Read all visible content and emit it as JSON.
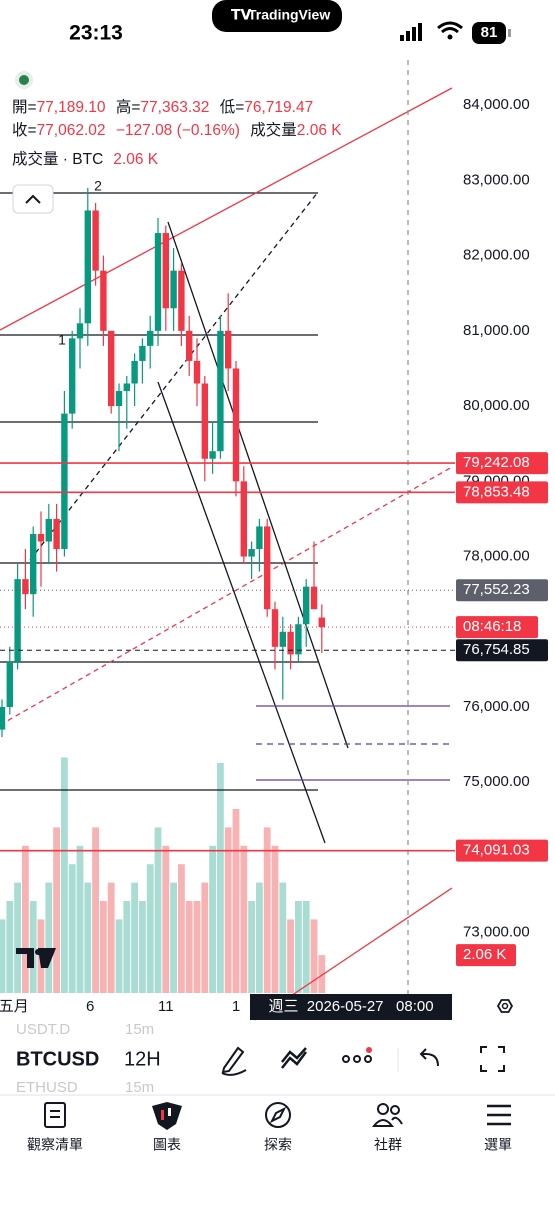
{
  "status_bar": {
    "time": "23:13",
    "app": "TradingView",
    "battery": "81"
  },
  "legend": {
    "open": {
      "label": "開=",
      "value": "77,189.10"
    },
    "high": {
      "label": "高=",
      "value": "77,363.32"
    },
    "low": {
      "label": "低=",
      "value": "76,719.47"
    },
    "close": {
      "label": "收=",
      "value": "77,062.02"
    },
    "change": "−127.08 (−0.16%)",
    "volume": {
      "label": "成交量",
      "value": "2.06 K"
    }
  },
  "volume_legend": {
    "label": "成交量 · BTC",
    "value": "2.06 K"
  },
  "wave_labels": [
    "2",
    "1"
  ],
  "ylim": [
    71840,
    84600
  ],
  "yticks": [
    {
      "value": 84000,
      "label": "84,000.00"
    },
    {
      "value": 83000,
      "label": "83,000.00"
    },
    {
      "value": 82000,
      "label": "82,000.00"
    },
    {
      "value": 81000,
      "label": "81,000.00"
    },
    {
      "value": 80000,
      "label": "80,000.00"
    },
    {
      "value": 79000,
      "label": "79,000.00"
    },
    {
      "value": 78000,
      "label": "78,000.00"
    },
    {
      "value": 76000,
      "label": "76,000.00"
    },
    {
      "value": 75000,
      "label": "75,000.00"
    },
    {
      "value": 73000,
      "label": "73,000.00"
    }
  ],
  "price_tags": [
    {
      "value": 79242.08,
      "label": "79,242.08",
      "color": "#f23645",
      "line_style": "solid"
    },
    {
      "value": 78853.48,
      "label": "78,853.48",
      "color": "#f23645",
      "line_style": "solid"
    },
    {
      "value": 77552.23,
      "label": "77,552.23",
      "color": "#5d606b",
      "line_style": "dotted"
    },
    {
      "value": 76754.85,
      "label": "76,754.85",
      "color": "#131722",
      "line_style": "dashed"
    },
    {
      "value": 74091.03,
      "label": "74,091.03",
      "color": "#f23645",
      "line_style": "solid"
    }
  ],
  "countdown": "08:46:18",
  "up_color": "#089981",
  "down_color": "#f23645",
  "volume_up_color": "#a9dcd3",
  "volume_down_color": "#f7b3b4",
  "candles": [
    [
      75700,
      76100,
      75600,
      76000
    ],
    [
      76000,
      76800,
      75900,
      76600
    ],
    [
      76600,
      77900,
      76500,
      77700
    ],
    [
      77700,
      78100,
      77300,
      77500
    ],
    [
      77500,
      78400,
      77200,
      78300
    ],
    [
      78300,
      78600,
      77600,
      78200
    ],
    [
      78200,
      78700,
      77900,
      78500
    ],
    [
      78500,
      78700,
      77800,
      78100
    ],
    [
      78100,
      80200,
      78000,
      79900
    ],
    [
      79900,
      81000,
      79700,
      80900
    ],
    [
      80900,
      81300,
      80500,
      81100
    ],
    [
      81100,
      82900,
      80800,
      82600
    ],
    [
      82600,
      82700,
      81600,
      81800
    ],
    [
      81800,
      82000,
      80800,
      81000
    ],
    [
      81000,
      81000,
      79900,
      80000
    ],
    [
      80000,
      80300,
      79400,
      80200
    ],
    [
      80200,
      80400,
      79700,
      80300
    ],
    [
      80300,
      80700,
      80000,
      80600
    ],
    [
      80600,
      80900,
      80300,
      80800
    ],
    [
      80800,
      81200,
      80500,
      81000
    ],
    [
      81000,
      82500,
      80800,
      82300
    ],
    [
      82300,
      82400,
      81000,
      81300
    ],
    [
      81300,
      82100,
      81000,
      81800
    ],
    [
      81800,
      81900,
      80800,
      81000
    ],
    [
      81000,
      81200,
      80400,
      80600
    ],
    [
      80600,
      80900,
      80000,
      80300
    ],
    [
      80300,
      80400,
      79000,
      79300
    ],
    [
      79300,
      79800,
      79100,
      79400
    ],
    [
      79400,
      81200,
      79300,
      81000
    ],
    [
      81000,
      81500,
      80200,
      80500
    ],
    [
      80500,
      80600,
      78800,
      79000
    ],
    [
      79000,
      79200,
      77900,
      78000
    ],
    [
      78000,
      78200,
      77700,
      78100
    ],
    [
      78100,
      78500,
      77800,
      78400
    ],
    [
      78400,
      78500,
      77200,
      77300
    ],
    [
      77300,
      77400,
      76500,
      76800
    ],
    [
      76800,
      77200,
      76100,
      77000
    ],
    [
      77000,
      77100,
      76500,
      76700
    ],
    [
      76700,
      77200,
      76600,
      77100
    ],
    [
      77100,
      77700,
      76800,
      77600
    ],
    [
      77600,
      78200,
      77300,
      77300
    ],
    [
      77189.1,
      77363.32,
      76719.47,
      77062.02
    ]
  ],
  "volumes": [
    4,
    5,
    6,
    8,
    5,
    4,
    6,
    9,
    12.8,
    7,
    8,
    6,
    9,
    5,
    6,
    4,
    5,
    6,
    5,
    7,
    9,
    8,
    6,
    7,
    5,
    5,
    6,
    8,
    12.5,
    9,
    10,
    8,
    5,
    6,
    9,
    8,
    6,
    4,
    5,
    5,
    4,
    2.06
  ],
  "volume_tag": "2.06 K",
  "time_axis": [
    "五月",
    "6",
    "11",
    "1"
  ],
  "crosshair_label": "週三  2026-05-27   08:00",
  "toolbar": {
    "symbol": "BTCUSD",
    "interval": "12H",
    "watchlist": [
      {
        "symbol": "USDT.D",
        "interval": "15m"
      },
      {
        "symbol": "ETHUSD",
        "interval": "15m"
      }
    ]
  },
  "tabs": [
    "觀察清單",
    "圖表",
    "探索",
    "社群",
    "選單"
  ]
}
